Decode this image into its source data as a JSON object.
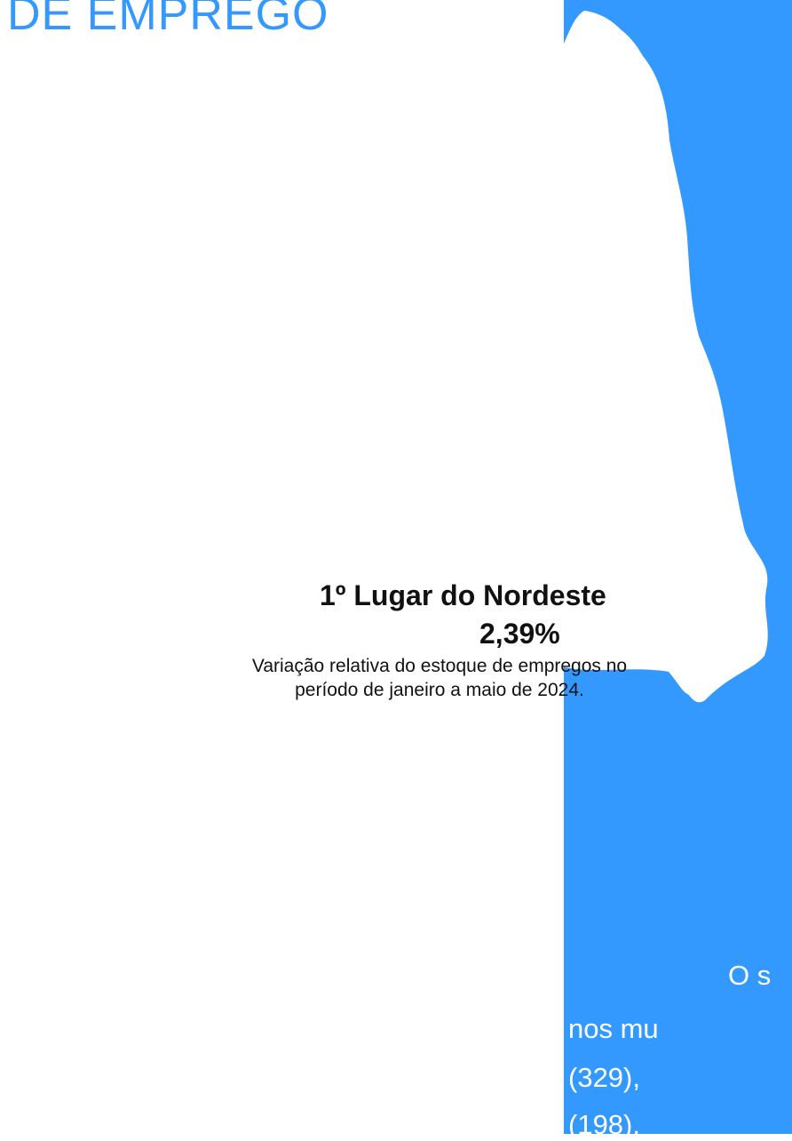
{
  "header": {
    "title": "DE EMPREGO"
  },
  "map": {
    "rank": "1º Lugar do Nordeste",
    "value": "2,39%",
    "note": [
      "Variação relativa do estoque de empregos no",
      "período de janeiro a maio de 2024."
    ]
  },
  "side_text": [
    "O s",
    "nos mu",
    "(329),",
    "(198),"
  ]
}
